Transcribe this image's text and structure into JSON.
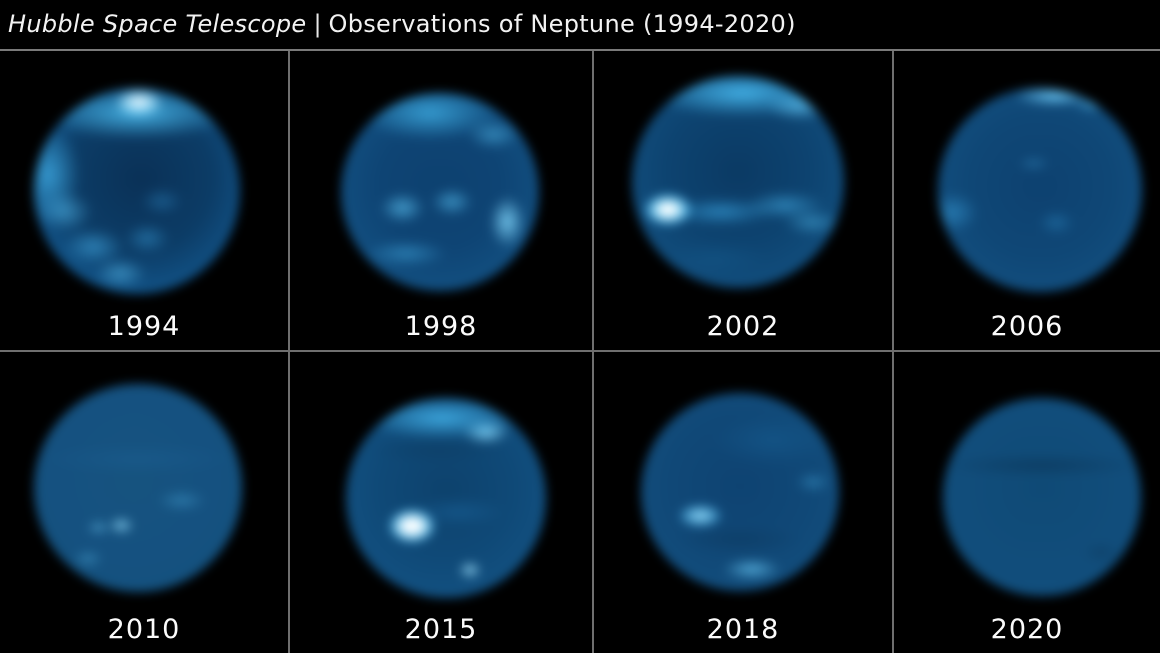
{
  "header": {
    "telescope": "Hubble Space Telescope",
    "divider": "|",
    "subtitle": "Observations of Neptune (1994-2020)"
  },
  "panels": [
    {
      "year": "1994",
      "image": "neptune-1994"
    },
    {
      "year": "1998",
      "image": "neptune-1998"
    },
    {
      "year": "2002",
      "image": "neptune-2002"
    },
    {
      "year": "2006",
      "image": "neptune-2006"
    },
    {
      "year": "2010",
      "image": "neptune-2010"
    },
    {
      "year": "2015",
      "image": "neptune-2015"
    },
    {
      "year": "2018",
      "image": "neptune-2018"
    },
    {
      "year": "2020",
      "image": "neptune-2020"
    }
  ],
  "colors": {
    "background": "#000000",
    "text": "#fbfbfb",
    "grid_line": "#6f6f6f",
    "planet_base": "#0e4878",
    "planet_bright": "#4ab4e8",
    "planet_highlight": "#ffffff"
  }
}
